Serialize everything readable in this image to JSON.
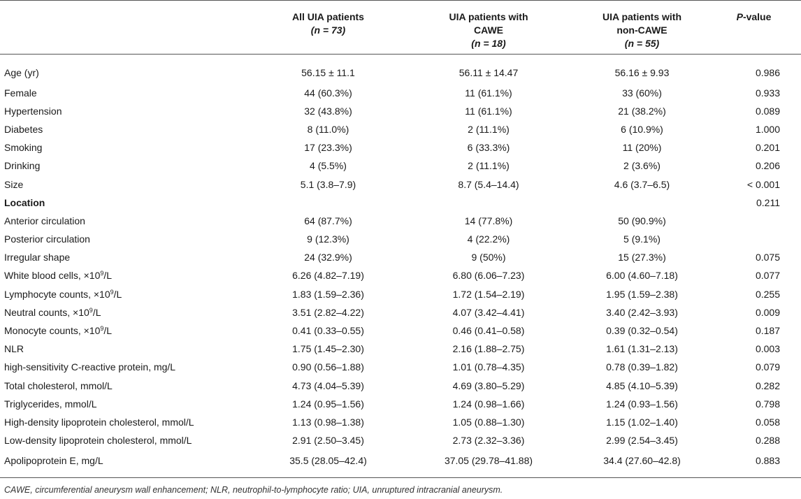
{
  "header": {
    "col1_line1": "All UIA patients",
    "col1_n": "(n = 73)",
    "col2_line1": "UIA patients with",
    "col2_line2": "CAWE",
    "col2_n": "(n = 18)",
    "col3_line1": "UIA patients with",
    "col3_line2": "non-CAWE",
    "col3_n": "(n = 55)",
    "col4_p": "P",
    "col4_rest": "-value"
  },
  "rows": [
    {
      "label": "Age (yr)",
      "all": "56.15 ± 11.1",
      "cawe": "56.11 ± 14.47",
      "non": "56.16 ± 9.93",
      "p": "0.986"
    },
    {
      "label": "Female",
      "all": "44 (60.3%)",
      "cawe": "11 (61.1%)",
      "non": "33 (60%)",
      "p": "0.933"
    },
    {
      "label": "Hypertension",
      "all": "32 (43.8%)",
      "cawe": "11 (61.1%)",
      "non": "21 (38.2%)",
      "p": "0.089"
    },
    {
      "label": "Diabetes",
      "all": "8 (11.0%)",
      "cawe": "2 (11.1%)",
      "non": "6 (10.9%)",
      "p": "1.000"
    },
    {
      "label": "Smoking",
      "all": "17 (23.3%)",
      "cawe": "6 (33.3%)",
      "non": "11 (20%)",
      "p": "0.201"
    },
    {
      "label": "Drinking",
      "all": "4 (5.5%)",
      "cawe": "2 (11.1%)",
      "non": "2 (3.6%)",
      "p": "0.206"
    },
    {
      "label": "Size",
      "all": "5.1 (3.8–7.9)",
      "cawe": "8.7 (5.4–14.4)",
      "non": "4.6 (3.7–6.5)",
      "p": "< 0.001"
    },
    {
      "label": "Location",
      "all": "",
      "cawe": "",
      "non": "",
      "p": "0.211"
    },
    {
      "label": "Anterior circulation",
      "all": "64 (87.7%)",
      "cawe": "14 (77.8%)",
      "non": "50 (90.9%)",
      "p": ""
    },
    {
      "label": "Posterior circulation",
      "all": "9 (12.3%)",
      "cawe": "4 (22.2%)",
      "non": "5 (9.1%)",
      "p": ""
    },
    {
      "label": "Irregular shape",
      "all": "24 (32.9%)",
      "cawe": "9 (50%)",
      "non": "15 (27.3%)",
      "p": "0.075"
    },
    {
      "label": "White blood cells, ×10",
      "unit": "/L",
      "all": "6.26 (4.82–7.19)",
      "cawe": "6.80 (6.06–7.23)",
      "non": "6.00 (4.60–7.18)",
      "p": "0.077"
    },
    {
      "label": "Lymphocyte counts, ×10",
      "unit": "/L",
      "all": "1.83 (1.59–2.36)",
      "cawe": "1.72 (1.54–2.19)",
      "non": "1.95 (1.59–2.38)",
      "p": "0.255"
    },
    {
      "label": "Neutral counts, ×10",
      "unit": "/L",
      "all": "3.51 (2.82–4.22)",
      "cawe": "4.07 (3.42–4.41)",
      "non": "3.40 (2.42–3.93)",
      "p": "0.009"
    },
    {
      "label": "Monocyte counts, ×10",
      "unit": "/L",
      "all": "0.41 (0.33–0.55)",
      "cawe": "0.46 (0.41–0.58)",
      "non": "0.39 (0.32–0.54)",
      "p": "0.187"
    },
    {
      "label": "NLR",
      "all": "1.75 (1.45–2.30)",
      "cawe": "2.16 (1.88–2.75)",
      "non": "1.61 (1.31–2.13)",
      "p": "0.003"
    },
    {
      "label": "high-sensitivity C-reactive protein, mg/L",
      "all": "0.90 (0.56–1.88)",
      "cawe": "1.01 (0.78–4.35)",
      "non": "0.78 (0.39–1.82)",
      "p": "0.079"
    },
    {
      "label": "Total cholesterol, mmol/L",
      "all": "4.73 (4.04–5.39)",
      "cawe": "4.69 (3.80–5.29)",
      "non": "4.85 (4.10–5.39)",
      "p": "0.282"
    },
    {
      "label": "Triglycerides, mmol/L",
      "all": "1.24 (0.95–1.56)",
      "cawe": "1.24 (0.98–1.66)",
      "non": "1.24 (0.93–1.56)",
      "p": "0.798"
    },
    {
      "label": "High-density lipoprotein cholesterol, mmol/L",
      "all": "1.13 (0.98–1.38)",
      "cawe": "1.05 (0.88–1.30)",
      "non": "1.15 (1.02–1.40)",
      "p": "0.058"
    },
    {
      "label": "Low-density lipoprotein cholesterol, mmol/L",
      "all": "2.91 (2.50–3.45)",
      "cawe": "2.73 (2.32–3.36)",
      "non": "2.99 (2.54–3.45)",
      "p": "0.288"
    },
    {
      "label": "Apolipoprotein E, mg/L",
      "all": "35.5 (28.05–42.4)",
      "cawe": "37.05 (29.78–41.88)",
      "non": "34.4 (27.60–42.8)",
      "p": "0.883"
    }
  ],
  "superscript": "9",
  "footnote": "CAWE, circumferential aneurysm wall enhancement; NLR, neutrophil-to-lymphocyte ratio; UIA, unruptured intracranial aneurysm."
}
